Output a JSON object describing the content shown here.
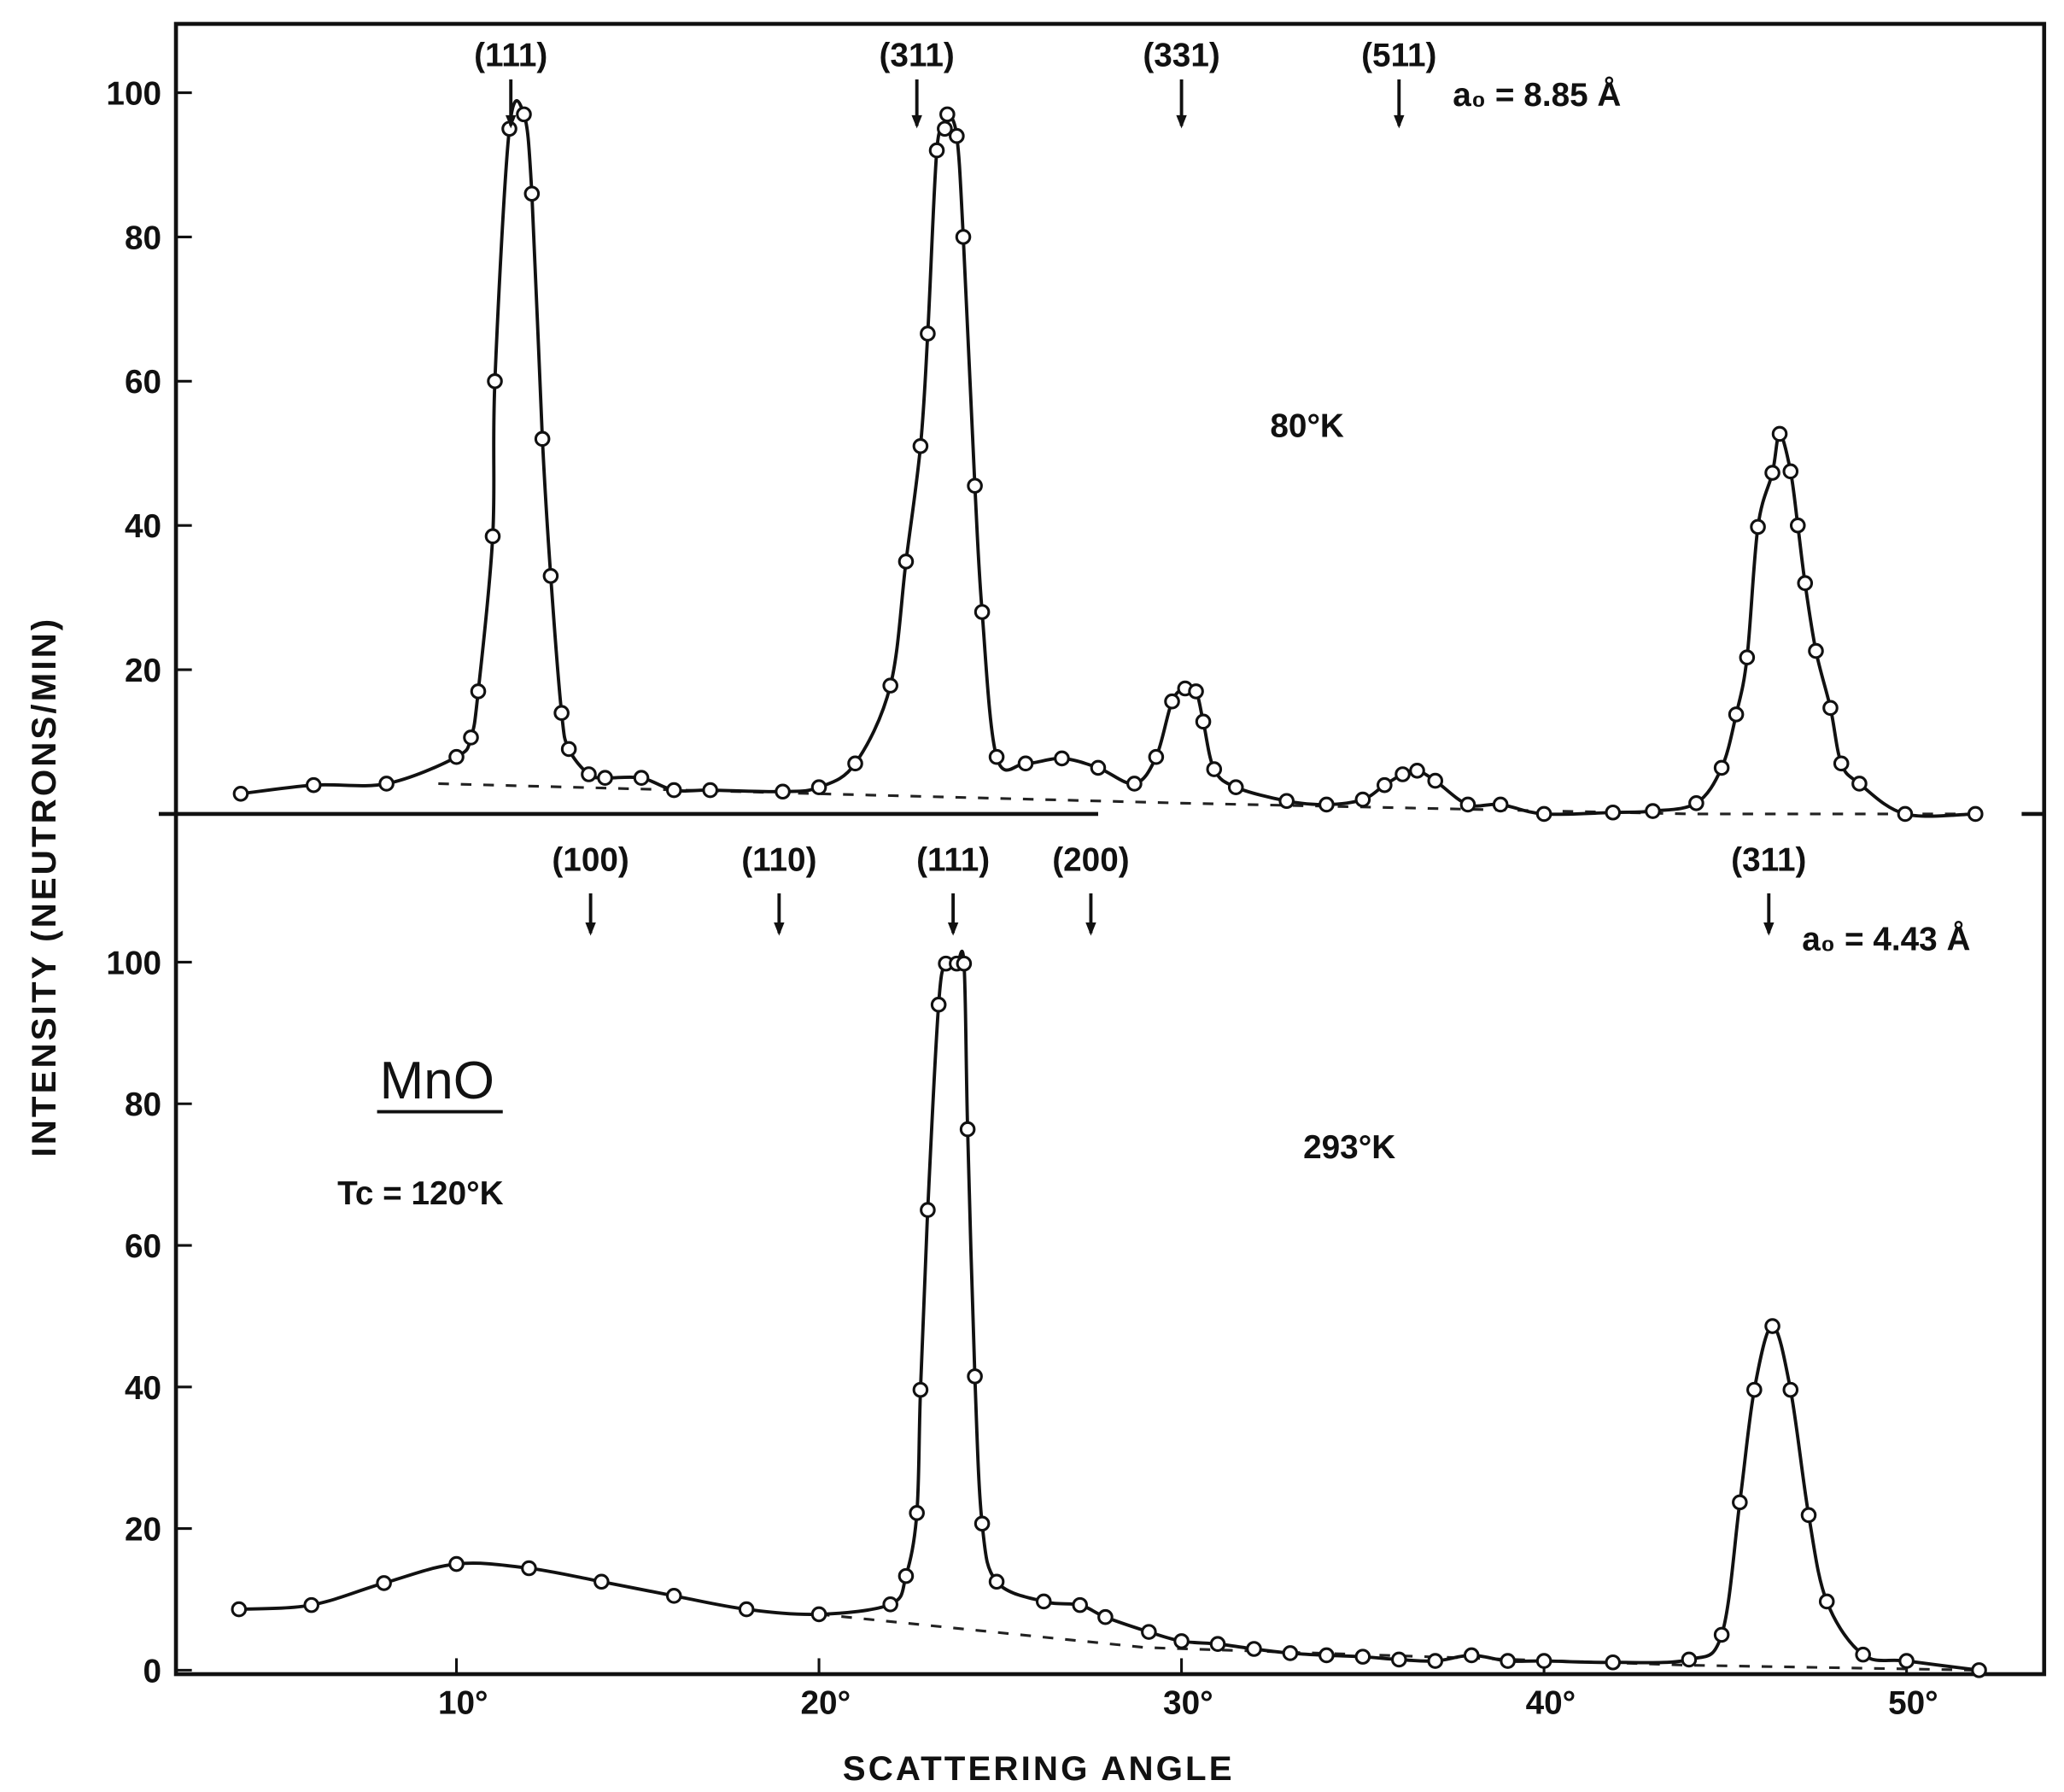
{
  "chart_data": [
    {
      "type": "line",
      "panel": "top",
      "title": "80°K",
      "lattice_label": "a₀ = 8.85 Å",
      "xlabel": "SCATTERING ANGLE",
      "ylabel": "INTENSITY (NEUTRONS/MIN)",
      "xlim": [
        2,
        54
      ],
      "ylim": [
        0,
        110
      ],
      "yticks": [
        "20",
        "40",
        "60",
        "80",
        "100"
      ],
      "ytick_values": [
        20,
        40,
        60,
        80,
        100
      ],
      "peak_labels": [
        {
          "label": "(111)",
          "angle": 11.5
        },
        {
          "label": "(311)",
          "angle": 22.7
        },
        {
          "label": "(331)",
          "angle": 30.0
        },
        {
          "label": "(511)",
          "angle": 36.0
        }
      ],
      "points": [
        [
          4.05,
          2.8
        ],
        [
          6.06,
          4.0
        ],
        [
          8.07,
          4.2
        ],
        [
          10.0,
          7.9
        ],
        [
          10.4,
          10.6
        ],
        [
          10.6,
          17
        ],
        [
          11.0,
          38.5
        ],
        [
          11.06,
          60
        ],
        [
          11.46,
          95
        ],
        [
          11.86,
          97
        ],
        [
          12.08,
          86
        ],
        [
          12.37,
          52
        ],
        [
          12.6,
          33
        ],
        [
          12.9,
          14
        ],
        [
          13.1,
          9
        ],
        [
          13.65,
          5.5
        ],
        [
          14.1,
          5
        ],
        [
          15.1,
          5
        ],
        [
          16.0,
          3.3
        ],
        [
          17.0,
          3.3
        ],
        [
          19.0,
          3.1
        ],
        [
          20.0,
          3.7
        ],
        [
          21.0,
          7
        ],
        [
          21.97,
          17.8
        ],
        [
          22.4,
          35
        ],
        [
          22.8,
          51
        ],
        [
          23.0,
          66.6
        ],
        [
          23.25,
          92
        ],
        [
          23.47,
          95
        ],
        [
          23.54,
          97
        ],
        [
          23.8,
          94
        ],
        [
          23.98,
          80
        ],
        [
          24.3,
          45.5
        ],
        [
          24.5,
          28
        ],
        [
          24.9,
          7.9
        ],
        [
          25.7,
          7
        ],
        [
          26.7,
          7.7
        ],
        [
          27.7,
          6.4
        ],
        [
          28.7,
          4.2
        ],
        [
          29.3,
          7.9
        ],
        [
          29.74,
          15.6
        ],
        [
          30.1,
          17.4
        ],
        [
          30.4,
          17
        ],
        [
          30.6,
          12.8
        ],
        [
          30.9,
          6.2
        ],
        [
          31.5,
          3.7
        ],
        [
          32.9,
          1.8
        ],
        [
          34.0,
          1.3
        ],
        [
          35.0,
          2
        ],
        [
          35.6,
          4
        ],
        [
          36.1,
          5.5
        ],
        [
          36.5,
          6
        ],
        [
          37.0,
          4.6
        ],
        [
          37.9,
          1.3
        ],
        [
          38.8,
          1.3
        ],
        [
          40.0,
          0
        ],
        [
          41.9,
          0.2
        ],
        [
          43.0,
          0.4
        ],
        [
          44.2,
          1.5
        ],
        [
          44.9,
          6.4
        ],
        [
          45.3,
          13.8
        ],
        [
          45.6,
          21.7
        ],
        [
          45.9,
          39.8
        ],
        [
          46.3,
          47.3
        ],
        [
          46.5,
          52.7
        ],
        [
          46.8,
          47.5
        ],
        [
          47.0,
          40
        ],
        [
          47.2,
          32
        ],
        [
          47.5,
          22.6
        ],
        [
          47.9,
          14.7
        ],
        [
          48.2,
          7
        ],
        [
          48.7,
          4.2
        ],
        [
          49.96,
          0
        ],
        [
          51.9,
          0
        ]
      ],
      "background": [
        [
          9.5,
          4.2
        ],
        [
          20,
          2.8
        ],
        [
          30,
          1.5
        ],
        [
          44,
          0
        ],
        [
          52,
          0
        ]
      ]
    },
    {
      "type": "line",
      "panel": "bottom",
      "title": "293°K",
      "lattice_label": "a₀ = 4.43 Å",
      "xlabel": "SCATTERING ANGLE",
      "ylabel": "INTENSITY (NEUTRONS/MIN)",
      "xlim": [
        2,
        54
      ],
      "ylim": [
        0,
        110
      ],
      "xticks": [
        "10°",
        "20°",
        "30°",
        "40°",
        "50°"
      ],
      "xtick_values": [
        10,
        20,
        30,
        40,
        50
      ],
      "yticks": [
        "0",
        "20",
        "40",
        "60",
        "80",
        "100"
      ],
      "ytick_values": [
        0,
        20,
        40,
        60,
        80,
        100
      ],
      "peak_labels": [
        {
          "label": "(100)",
          "angle": 13.7
        },
        {
          "label": "(110)",
          "angle": 18.9
        },
        {
          "label": "(111)",
          "angle": 23.7
        },
        {
          "label": "(200)",
          "angle": 27.5
        },
        {
          "label": "(311)",
          "angle": 46.2
        }
      ],
      "points": [
        [
          4.0,
          8.6
        ],
        [
          6.0,
          9.2
        ],
        [
          8.0,
          12.3
        ],
        [
          10.0,
          15
        ],
        [
          12.0,
          14.4
        ],
        [
          14.0,
          12.5
        ],
        [
          16.0,
          10.5
        ],
        [
          18.0,
          8.6
        ],
        [
          20.0,
          7.9
        ],
        [
          21.97,
          9.3
        ],
        [
          22.4,
          13.3
        ],
        [
          22.7,
          22.2
        ],
        [
          22.8,
          39.6
        ],
        [
          23.0,
          65
        ],
        [
          23.3,
          94
        ],
        [
          23.5,
          99.8
        ],
        [
          23.8,
          99.8
        ],
        [
          24.0,
          99.8
        ],
        [
          24.1,
          76.4
        ],
        [
          24.3,
          41.5
        ],
        [
          24.5,
          20.7
        ],
        [
          24.9,
          12.5
        ],
        [
          26.2,
          9.7
        ],
        [
          27.2,
          9.2
        ],
        [
          27.9,
          7.5
        ],
        [
          29.1,
          5.4
        ],
        [
          30.0,
          4.1
        ],
        [
          31.0,
          3.7
        ],
        [
          32.0,
          3.0
        ],
        [
          33.0,
          2.4
        ],
        [
          34.0,
          2.1
        ],
        [
          35.0,
          1.9
        ],
        [
          36.0,
          1.5
        ],
        [
          37.0,
          1.3
        ],
        [
          38.0,
          2.1
        ],
        [
          39.0,
          1.3
        ],
        [
          40.0,
          1.3
        ],
        [
          41.9,
          1.1
        ],
        [
          44.0,
          1.5
        ],
        [
          44.9,
          5
        ],
        [
          45.4,
          23.7
        ],
        [
          45.8,
          39.6
        ],
        [
          46.3,
          48.6
        ],
        [
          46.8,
          39.6
        ],
        [
          47.3,
          21.9
        ],
        [
          47.8,
          9.7
        ],
        [
          48.8,
          2.2
        ],
        [
          50.0,
          1.3
        ],
        [
          52.0,
          0
        ]
      ],
      "background": [
        [
          20,
          7.9
        ],
        [
          29,
          3.2
        ],
        [
          44,
          0.7
        ],
        [
          52,
          0
        ]
      ]
    }
  ],
  "annotations": {
    "compound": "MnO",
    "tc_label": "Tc = 120°K"
  },
  "axes": {
    "xlabel": "SCATTERING ANGLE",
    "ylabel": "INTENSITY   (NEUTRONS/MIN)"
  }
}
